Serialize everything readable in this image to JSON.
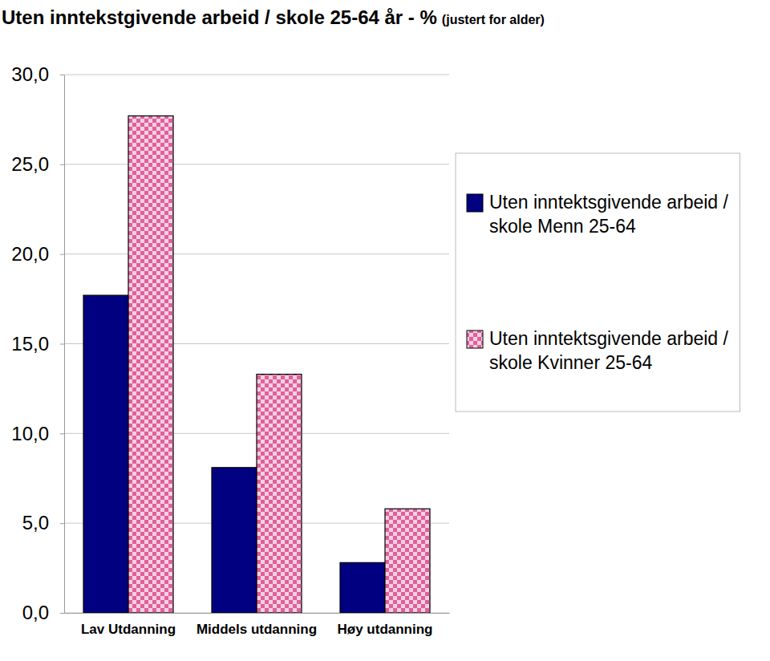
{
  "chart_data": {
    "type": "bar",
    "title": "Uten inntekstgivende arbeid / skole 25-64 år - %",
    "subtitle": "(justert for alder)",
    "categories": [
      "Lav Utdanning",
      "Middels utdanning",
      "Høy utdanning"
    ],
    "series": [
      {
        "name": "Uten inntektsgivende arbeid / skole Menn 25-64",
        "color": "#000080",
        "values": [
          17.7,
          8.1,
          2.8
        ]
      },
      {
        "name": "Uten inntektsgivende arbeid / skole Kvinner 25-64",
        "color": "#e0609c",
        "values": [
          27.7,
          13.3,
          5.8
        ]
      }
    ],
    "ylim": [
      0,
      30
    ],
    "yticks": [
      {
        "value": 0,
        "label": "0,0"
      },
      {
        "value": 5,
        "label": "5,0"
      },
      {
        "value": 10,
        "label": "10,0"
      },
      {
        "value": 15,
        "label": "15,0"
      },
      {
        "value": 20,
        "label": "20,0"
      },
      {
        "value": 25,
        "label": "25,0"
      },
      {
        "value": 30,
        "label": "30,0"
      }
    ],
    "grid": true,
    "legend": "right"
  }
}
